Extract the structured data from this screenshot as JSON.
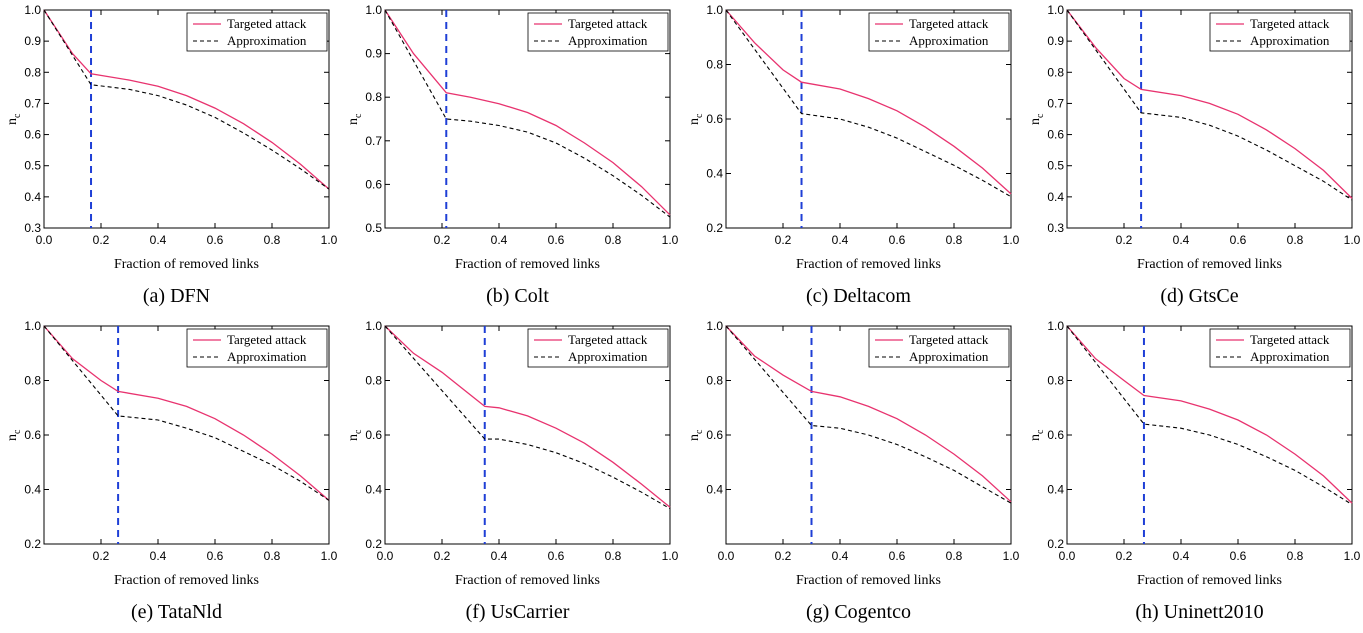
{
  "legend_labels": {
    "targeted": "Targeted attack",
    "approx": "Approximation"
  },
  "colors": {
    "targeted": "#e8336f",
    "approx": "#000000",
    "threshold": "#1f3fd6"
  },
  "xlabel": "Fraction of removed links",
  "ylabel_main": "n",
  "ylabel_sub": "c",
  "chart_data": [
    {
      "type": "line",
      "caption": "(a)  DFN",
      "xlim": [
        0,
        1
      ],
      "ylim": [
        0.3,
        1.0
      ],
      "xticks": [
        "0.0",
        "0.2",
        "0.4",
        "0.6",
        "0.8",
        "1.0"
      ],
      "xtick_values": [
        0,
        0.2,
        0.4,
        0.6,
        0.8,
        1.0
      ],
      "yticks": [
        "0.3",
        "0.4",
        "0.5",
        "0.6",
        "0.7",
        "0.8",
        "0.9",
        "1.0"
      ],
      "ytick_values": [
        0.3,
        0.4,
        0.5,
        0.6,
        0.7,
        0.8,
        0.9,
        1.0
      ],
      "legend": "top-right",
      "grid": false,
      "threshold_x": 0.165,
      "series": [
        {
          "name": "Targeted attack",
          "style": "solid",
          "x": [
            0,
            0.05,
            0.1,
            0.165,
            0.3,
            0.4,
            0.5,
            0.6,
            0.7,
            0.8,
            0.9,
            1.0
          ],
          "y": [
            1.0,
            0.93,
            0.86,
            0.795,
            0.775,
            0.755,
            0.725,
            0.685,
            0.635,
            0.575,
            0.505,
            0.425
          ]
        },
        {
          "name": "Approximation",
          "style": "dashed",
          "x": [
            0,
            0.165,
            0.3,
            0.4,
            0.5,
            0.6,
            0.7,
            0.8,
            0.9,
            1.0
          ],
          "y": [
            1.0,
            0.76,
            0.745,
            0.725,
            0.695,
            0.655,
            0.605,
            0.55,
            0.49,
            0.425
          ]
        }
      ]
    },
    {
      "type": "line",
      "caption": "(b)  Colt",
      "xlim": [
        0,
        1
      ],
      "ylim": [
        0.5,
        1.0
      ],
      "xticks": [
        "0.2",
        "0.4",
        "0.6",
        "0.8",
        "1.0"
      ],
      "xtick_values": [
        0.2,
        0.4,
        0.6,
        0.8,
        1.0
      ],
      "yticks": [
        "0.5",
        "0.6",
        "0.7",
        "0.8",
        "0.9",
        "1.0"
      ],
      "ytick_values": [
        0.5,
        0.6,
        0.7,
        0.8,
        0.9,
        1.0
      ],
      "legend": "top-right",
      "grid": false,
      "threshold_x": 0.215,
      "series": [
        {
          "name": "Targeted attack",
          "style": "solid",
          "x": [
            0,
            0.1,
            0.215,
            0.3,
            0.4,
            0.5,
            0.6,
            0.7,
            0.8,
            0.9,
            1.0
          ],
          "y": [
            1.0,
            0.9,
            0.81,
            0.8,
            0.785,
            0.765,
            0.735,
            0.695,
            0.65,
            0.595,
            0.53
          ]
        },
        {
          "name": "Approximation",
          "style": "dashed",
          "x": [
            0,
            0.215,
            0.3,
            0.4,
            0.5,
            0.6,
            0.7,
            0.8,
            0.9,
            1.0
          ],
          "y": [
            1.0,
            0.75,
            0.745,
            0.735,
            0.72,
            0.695,
            0.66,
            0.62,
            0.575,
            0.525
          ]
        }
      ]
    },
    {
      "type": "line",
      "caption": "(c)  Deltacom",
      "xlim": [
        0,
        1
      ],
      "ylim": [
        0.2,
        1.0
      ],
      "xticks": [
        "0.2",
        "0.4",
        "0.6",
        "0.8",
        "1.0"
      ],
      "xtick_values": [
        0.2,
        0.4,
        0.6,
        0.8,
        1.0
      ],
      "yticks": [
        "0.2",
        "0.4",
        "0.6",
        "0.8",
        "1.0"
      ],
      "ytick_values": [
        0.2,
        0.4,
        0.6,
        0.8,
        1.0
      ],
      "legend": "top-right",
      "grid": false,
      "threshold_x": 0.265,
      "series": [
        {
          "name": "Targeted attack",
          "style": "solid",
          "x": [
            0,
            0.1,
            0.2,
            0.265,
            0.4,
            0.5,
            0.6,
            0.7,
            0.8,
            0.9,
            1.0
          ],
          "y": [
            1.0,
            0.88,
            0.78,
            0.735,
            0.71,
            0.675,
            0.63,
            0.57,
            0.5,
            0.42,
            0.325
          ]
        },
        {
          "name": "Approximation",
          "style": "dashed",
          "x": [
            0,
            0.265,
            0.4,
            0.5,
            0.6,
            0.7,
            0.8,
            0.9,
            1.0
          ],
          "y": [
            1.0,
            0.62,
            0.6,
            0.57,
            0.53,
            0.48,
            0.43,
            0.375,
            0.315
          ]
        }
      ]
    },
    {
      "type": "line",
      "caption": "(d)  GtsCe",
      "xlim": [
        0,
        1
      ],
      "ylim": [
        0.3,
        1.0
      ],
      "xticks": [
        "0.2",
        "0.4",
        "0.6",
        "0.8",
        "1.0"
      ],
      "xtick_values": [
        0.2,
        0.4,
        0.6,
        0.8,
        1.0
      ],
      "yticks": [
        "0.3",
        "0.4",
        "0.5",
        "0.6",
        "0.7",
        "0.8",
        "0.9",
        "1.0"
      ],
      "ytick_values": [
        0.3,
        0.4,
        0.5,
        0.6,
        0.7,
        0.8,
        0.9,
        1.0
      ],
      "legend": "top-right",
      "grid": false,
      "threshold_x": 0.26,
      "series": [
        {
          "name": "Targeted attack",
          "style": "solid",
          "x": [
            0,
            0.1,
            0.2,
            0.26,
            0.4,
            0.5,
            0.6,
            0.7,
            0.8,
            0.9,
            1.0
          ],
          "y": [
            1.0,
            0.88,
            0.78,
            0.745,
            0.725,
            0.7,
            0.665,
            0.615,
            0.555,
            0.485,
            0.395
          ]
        },
        {
          "name": "Approximation",
          "style": "dashed",
          "x": [
            0,
            0.26,
            0.4,
            0.5,
            0.6,
            0.7,
            0.8,
            0.9,
            1.0
          ],
          "y": [
            1.0,
            0.67,
            0.655,
            0.63,
            0.595,
            0.55,
            0.5,
            0.45,
            0.39
          ]
        }
      ]
    },
    {
      "type": "line",
      "caption": "(e)  TataNld",
      "xlim": [
        0,
        1
      ],
      "ylim": [
        0.2,
        1.0
      ],
      "xticks": [
        "0.2",
        "0.4",
        "0.6",
        "0.8",
        "1.0"
      ],
      "xtick_values": [
        0.2,
        0.4,
        0.6,
        0.8,
        1.0
      ],
      "yticks": [
        "0.2",
        "0.4",
        "0.6",
        "0.8",
        "1.0"
      ],
      "ytick_values": [
        0.2,
        0.4,
        0.6,
        0.8,
        1.0
      ],
      "legend": "top-right",
      "grid": false,
      "threshold_x": 0.26,
      "series": [
        {
          "name": "Targeted attack",
          "style": "solid",
          "x": [
            0,
            0.1,
            0.2,
            0.26,
            0.4,
            0.5,
            0.6,
            0.7,
            0.8,
            0.9,
            1.0
          ],
          "y": [
            1.0,
            0.88,
            0.8,
            0.76,
            0.735,
            0.705,
            0.66,
            0.6,
            0.53,
            0.45,
            0.36
          ]
        },
        {
          "name": "Approximation",
          "style": "dashed",
          "x": [
            0,
            0.26,
            0.4,
            0.5,
            0.6,
            0.7,
            0.8,
            0.9,
            1.0
          ],
          "y": [
            1.0,
            0.67,
            0.655,
            0.625,
            0.59,
            0.54,
            0.49,
            0.43,
            0.36
          ]
        }
      ]
    },
    {
      "type": "line",
      "caption": "(f)  UsCarrier",
      "xlim": [
        0,
        1
      ],
      "ylim": [
        0.2,
        1.0
      ],
      "xticks": [
        "0.0",
        "0.2",
        "0.4",
        "0.6",
        "0.8",
        "1.0"
      ],
      "xtick_values": [
        0,
        0.2,
        0.4,
        0.6,
        0.8,
        1.0
      ],
      "yticks": [
        "0.2",
        "0.4",
        "0.6",
        "0.8",
        "1.0"
      ],
      "ytick_values": [
        0.2,
        0.4,
        0.6,
        0.8,
        1.0
      ],
      "legend": "top-right",
      "grid": false,
      "threshold_x": 0.35,
      "series": [
        {
          "name": "Targeted attack",
          "style": "solid",
          "x": [
            0,
            0.1,
            0.2,
            0.35,
            0.4,
            0.5,
            0.6,
            0.7,
            0.8,
            0.9,
            1.0
          ],
          "y": [
            1.0,
            0.9,
            0.83,
            0.705,
            0.7,
            0.67,
            0.625,
            0.57,
            0.5,
            0.42,
            0.335
          ]
        },
        {
          "name": "Approximation",
          "style": "dashed",
          "x": [
            0,
            0.35,
            0.4,
            0.5,
            0.6,
            0.7,
            0.8,
            0.9,
            1.0
          ],
          "y": [
            1.0,
            0.585,
            0.585,
            0.565,
            0.535,
            0.495,
            0.445,
            0.39,
            0.33
          ]
        }
      ]
    },
    {
      "type": "line",
      "caption": "(g)  Cogentco",
      "xlim": [
        0,
        1
      ],
      "ylim": [
        0.2,
        1.0
      ],
      "xticks": [
        "0.0",
        "0.2",
        "0.4",
        "0.6",
        "0.8",
        "1.0"
      ],
      "xtick_values": [
        0,
        0.2,
        0.4,
        0.6,
        0.8,
        1.0
      ],
      "yticks": [
        "0.4",
        "0.6",
        "0.8",
        "1.0"
      ],
      "ytick_values": [
        0.4,
        0.6,
        0.8,
        1.0
      ],
      "legend": "top-right",
      "grid": false,
      "threshold_x": 0.3,
      "series": [
        {
          "name": "Targeted attack",
          "style": "solid",
          "x": [
            0,
            0.1,
            0.2,
            0.3,
            0.4,
            0.5,
            0.6,
            0.7,
            0.8,
            0.9,
            1.0
          ],
          "y": [
            1.0,
            0.89,
            0.82,
            0.76,
            0.74,
            0.705,
            0.66,
            0.6,
            0.53,
            0.45,
            0.355
          ]
        },
        {
          "name": "Approximation",
          "style": "dashed",
          "x": [
            0,
            0.3,
            0.4,
            0.5,
            0.6,
            0.7,
            0.8,
            0.9,
            1.0
          ],
          "y": [
            1.0,
            0.635,
            0.625,
            0.6,
            0.565,
            0.52,
            0.47,
            0.41,
            0.35
          ]
        }
      ]
    },
    {
      "type": "line",
      "caption": "(h)  Uninett2010",
      "xlim": [
        0,
        1
      ],
      "ylim": [
        0.2,
        1.0
      ],
      "xticks": [
        "0.0",
        "0.2",
        "0.4",
        "0.6",
        "0.8",
        "1.0"
      ],
      "xtick_values": [
        0,
        0.2,
        0.4,
        0.6,
        0.8,
        1.0
      ],
      "yticks": [
        "0.2",
        "0.4",
        "0.6",
        "0.8",
        "1.0"
      ],
      "ytick_values": [
        0.2,
        0.4,
        0.6,
        0.8,
        1.0
      ],
      "legend": "top-right",
      "grid": false,
      "threshold_x": 0.27,
      "series": [
        {
          "name": "Targeted attack",
          "style": "solid",
          "x": [
            0,
            0.1,
            0.2,
            0.27,
            0.4,
            0.5,
            0.6,
            0.7,
            0.8,
            0.9,
            1.0
          ],
          "y": [
            1.0,
            0.88,
            0.8,
            0.745,
            0.725,
            0.695,
            0.655,
            0.6,
            0.53,
            0.45,
            0.35
          ]
        },
        {
          "name": "Approximation",
          "style": "dashed",
          "x": [
            0,
            0.27,
            0.4,
            0.5,
            0.6,
            0.7,
            0.8,
            0.9,
            1.0
          ],
          "y": [
            1.0,
            0.64,
            0.625,
            0.6,
            0.565,
            0.52,
            0.47,
            0.41,
            0.345
          ]
        }
      ]
    }
  ]
}
